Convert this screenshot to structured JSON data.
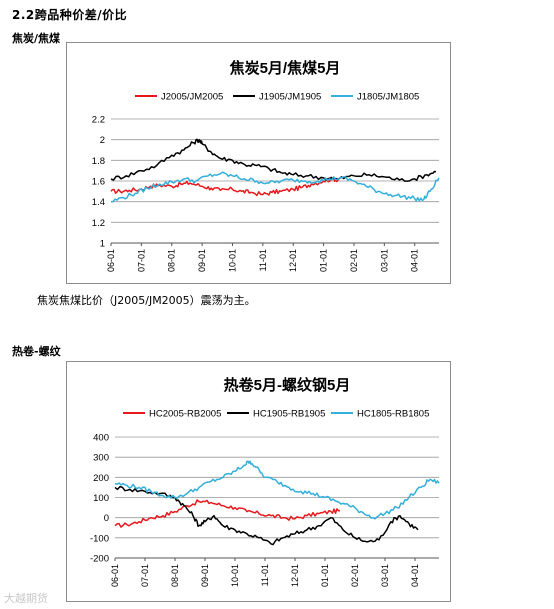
{
  "section_title": "2.2跨品种价差/价比",
  "subsection1": "焦炭/焦煤",
  "note": "焦炭焦煤比价（J2005/JM2005）震荡为主。",
  "subsection2": "热卷-螺纹",
  "watermark": "大越期货",
  "chart_data": [
    {
      "type": "line",
      "title": "焦炭5月/焦煤5月",
      "ylim": [
        1,
        2.2
      ],
      "yticks": [
        "1",
        "1.2",
        "1.4",
        "1.6",
        "1.8",
        "2",
        "2.2"
      ],
      "x_tick_labels": [
        "06-01",
        "07-01",
        "08-01",
        "09-01",
        "10-01",
        "11-01",
        "12-01",
        "01-01",
        "02-01",
        "03-01",
        "04-01"
      ],
      "x_range": [
        0,
        10.8
      ],
      "grid": "horizontal",
      "legend": "top",
      "series": [
        {
          "name": "J2005/JM2005",
          "color": "#e8191d",
          "points": [
            [
              0,
              1.5
            ],
            [
              0.3,
              1.5
            ],
            [
              0.6,
              1.51
            ],
            [
              1,
              1.52
            ],
            [
              1.3,
              1.55
            ],
            [
              1.6,
              1.56
            ],
            [
              2,
              1.55
            ],
            [
              2.3,
              1.57
            ],
            [
              2.6,
              1.58
            ],
            [
              3,
              1.55
            ],
            [
              3.3,
              1.53
            ],
            [
              3.6,
              1.51
            ],
            [
              4,
              1.52
            ],
            [
              4.3,
              1.5
            ],
            [
              4.6,
              1.49
            ],
            [
              5,
              1.47
            ],
            [
              5.3,
              1.49
            ],
            [
              5.6,
              1.5
            ],
            [
              6,
              1.52
            ],
            [
              6.3,
              1.54
            ],
            [
              6.6,
              1.57
            ],
            [
              7,
              1.6
            ],
            [
              7.3,
              1.62
            ],
            [
              7.5,
              1.61
            ]
          ]
        },
        {
          "name": "J1905/JM1905",
          "color": "#000000",
          "points": [
            [
              0,
              1.62
            ],
            [
              0.5,
              1.65
            ],
            [
              1,
              1.7
            ],
            [
              1.5,
              1.75
            ],
            [
              2,
              1.85
            ],
            [
              2.4,
              1.9
            ],
            [
              2.7,
              1.97
            ],
            [
              2.9,
              2.0
            ],
            [
              3,
              1.96
            ],
            [
              3.3,
              1.88
            ],
            [
              3.6,
              1.82
            ],
            [
              4,
              1.8
            ],
            [
              4.4,
              1.76
            ],
            [
              4.8,
              1.75
            ],
            [
              5.2,
              1.72
            ],
            [
              5.6,
              1.68
            ],
            [
              6,
              1.66
            ],
            [
              6.5,
              1.65
            ],
            [
              7,
              1.63
            ],
            [
              7.5,
              1.62
            ],
            [
              8,
              1.65
            ],
            [
              8.5,
              1.66
            ],
            [
              9,
              1.64
            ],
            [
              9.5,
              1.61
            ],
            [
              10,
              1.62
            ],
            [
              10.4,
              1.66
            ],
            [
              10.7,
              1.69
            ]
          ]
        },
        {
          "name": "J1805/JM1805",
          "color": "#33afdb",
          "points": [
            [
              0,
              1.4
            ],
            [
              0.4,
              1.44
            ],
            [
              0.8,
              1.48
            ],
            [
              1.2,
              1.53
            ],
            [
              1.6,
              1.57
            ],
            [
              2,
              1.59
            ],
            [
              2.4,
              1.62
            ],
            [
              2.8,
              1.6
            ],
            [
              3.2,
              1.65
            ],
            [
              3.6,
              1.67
            ],
            [
              4,
              1.65
            ],
            [
              4.4,
              1.62
            ],
            [
              4.8,
              1.6
            ],
            [
              5.2,
              1.58
            ],
            [
              5.6,
              1.6
            ],
            [
              6,
              1.61
            ],
            [
              6.4,
              1.6
            ],
            [
              6.8,
              1.6
            ],
            [
              7.2,
              1.62
            ],
            [
              7.6,
              1.63
            ],
            [
              8,
              1.6
            ],
            [
              8.4,
              1.55
            ],
            [
              8.8,
              1.5
            ],
            [
              9.2,
              1.47
            ],
            [
              9.6,
              1.45
            ],
            [
              10,
              1.43
            ],
            [
              10.3,
              1.42
            ],
            [
              10.5,
              1.5
            ],
            [
              10.8,
              1.63
            ]
          ]
        }
      ]
    },
    {
      "type": "line",
      "title": "热卷5月-螺纹钢5月",
      "ylim": [
        -200,
        400
      ],
      "yticks": [
        "-200",
        "-100",
        "0",
        "100",
        "200",
        "300",
        "400"
      ],
      "x_tick_labels": [
        "06-01",
        "07-01",
        "08-01",
        "09-01",
        "10-01",
        "11-01",
        "12-01",
        "01-01",
        "02-01",
        "03-01",
        "04-01"
      ],
      "x_range": [
        0,
        10.8
      ],
      "grid": "horizontal",
      "legend": "top",
      "series": [
        {
          "name": "HC2005-RB2005",
          "color": "#e8191d",
          "points": [
            [
              0,
              -40
            ],
            [
              0.4,
              -35
            ],
            [
              0.8,
              -20
            ],
            [
              1.2,
              0
            ],
            [
              1.6,
              10
            ],
            [
              2,
              30
            ],
            [
              2.4,
              60
            ],
            [
              2.8,
              80
            ],
            [
              3.2,
              75
            ],
            [
              3.6,
              60
            ],
            [
              4,
              50
            ],
            [
              4.4,
              30
            ],
            [
              4.8,
              20
            ],
            [
              5.2,
              10
            ],
            [
              5.6,
              0
            ],
            [
              6,
              -5
            ],
            [
              6.4,
              10
            ],
            [
              6.8,
              20
            ],
            [
              7.2,
              30
            ],
            [
              7.5,
              35
            ]
          ]
        },
        {
          "name": "HC1905-RB1905",
          "color": "#000000",
          "points": [
            [
              0,
              150
            ],
            [
              0.5,
              140
            ],
            [
              1,
              130
            ],
            [
              1.5,
              120
            ],
            [
              2,
              100
            ],
            [
              2.3,
              60
            ],
            [
              2.6,
              10
            ],
            [
              2.8,
              -40
            ],
            [
              3,
              -20
            ],
            [
              3.3,
              10
            ],
            [
              3.6,
              -40
            ],
            [
              4,
              -60
            ],
            [
              4.4,
              -80
            ],
            [
              4.8,
              -100
            ],
            [
              5.2,
              -130
            ],
            [
              5.6,
              -100
            ],
            [
              6,
              -80
            ],
            [
              6.4,
              -60
            ],
            [
              6.8,
              -40
            ],
            [
              7.2,
              0
            ],
            [
              7.6,
              -60
            ],
            [
              8,
              -100
            ],
            [
              8.4,
              -120
            ],
            [
              8.8,
              -110
            ],
            [
              9.2,
              -20
            ],
            [
              9.5,
              10
            ],
            [
              9.8,
              -30
            ],
            [
              10.1,
              -60
            ]
          ]
        },
        {
          "name": "HC1805-RB1805",
          "color": "#33afdb",
          "points": [
            [
              0,
              170
            ],
            [
              0.4,
              160
            ],
            [
              0.8,
              150
            ],
            [
              1.2,
              130
            ],
            [
              1.6,
              110
            ],
            [
              2,
              100
            ],
            [
              2.4,
              120
            ],
            [
              2.8,
              150
            ],
            [
              3.2,
              180
            ],
            [
              3.6,
              200
            ],
            [
              4,
              230
            ],
            [
              4.3,
              260
            ],
            [
              4.5,
              280
            ],
            [
              4.7,
              250
            ],
            [
              5,
              200
            ],
            [
              5.4,
              180
            ],
            [
              5.8,
              150
            ],
            [
              6.2,
              130
            ],
            [
              6.6,
              120
            ],
            [
              7,
              100
            ],
            [
              7.4,
              80
            ],
            [
              7.8,
              60
            ],
            [
              8.2,
              30
            ],
            [
              8.6,
              0
            ],
            [
              9,
              20
            ],
            [
              9.4,
              50
            ],
            [
              9.8,
              100
            ],
            [
              10.2,
              150
            ],
            [
              10.5,
              190
            ],
            [
              10.8,
              170
            ]
          ]
        }
      ]
    }
  ]
}
